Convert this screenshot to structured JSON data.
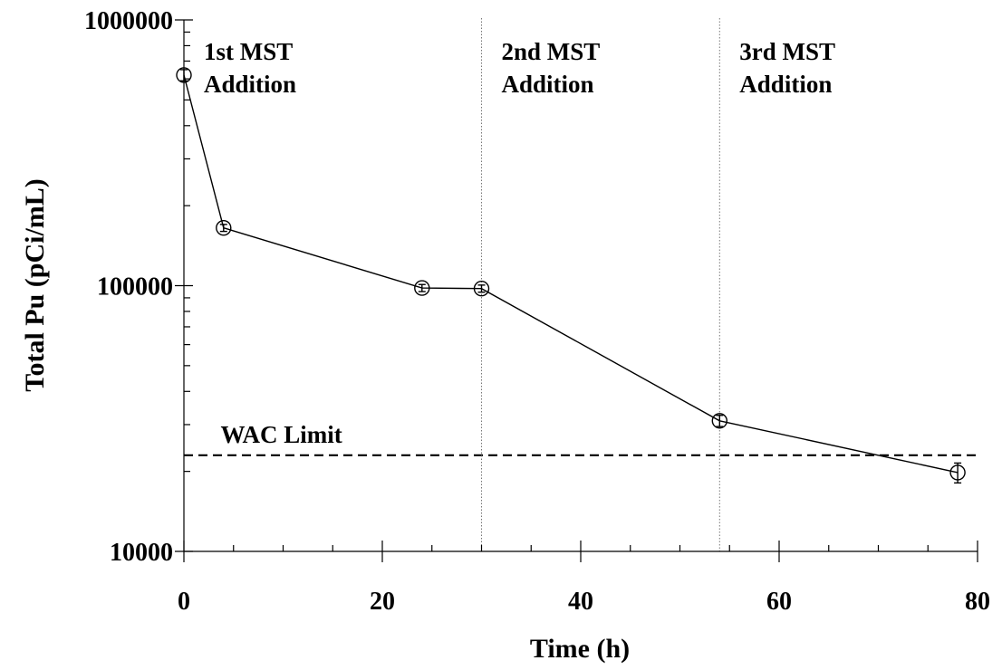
{
  "chart_data": {
    "type": "line",
    "title": "",
    "xlabel": "Time (h)",
    "ylabel": "Total Pu (pCi/mL)",
    "xlim": [
      0,
      80
    ],
    "ylim": [
      10000,
      1000000
    ],
    "y_scale": "log",
    "x_ticks": [
      0,
      20,
      40,
      60,
      80
    ],
    "x_tick_labels": [
      "0",
      "20",
      "40",
      "60",
      "80"
    ],
    "y_ticks": [
      10000,
      100000,
      1000000
    ],
    "y_tick_labels": [
      "10000",
      "100000",
      "1000000"
    ],
    "grid": false,
    "series": [
      {
        "x": [
          0,
          4,
          24,
          30,
          54,
          78
        ],
        "y": [
          620000,
          165000,
          98000,
          97500,
          31000,
          19800
        ],
        "y_err": [
          30000,
          5000,
          3000,
          3000,
          1500,
          1700
        ],
        "marker": "open-circle"
      }
    ],
    "reference_lines": [
      {
        "type": "horizontal",
        "y": 23000,
        "label": "WAC Limit",
        "style": "dashed"
      },
      {
        "type": "vertical",
        "x": 30,
        "style": "dotted"
      },
      {
        "type": "vertical",
        "x": 54,
        "style": "dotted"
      }
    ],
    "annotations": [
      {
        "text_lines": [
          "1st MST",
          "Addition"
        ],
        "x": 0
      },
      {
        "text_lines": [
          "2nd MST",
          "Addition"
        ],
        "x": 30
      },
      {
        "text_lines": [
          "3rd MST",
          "Addition"
        ],
        "x": 54
      }
    ]
  }
}
